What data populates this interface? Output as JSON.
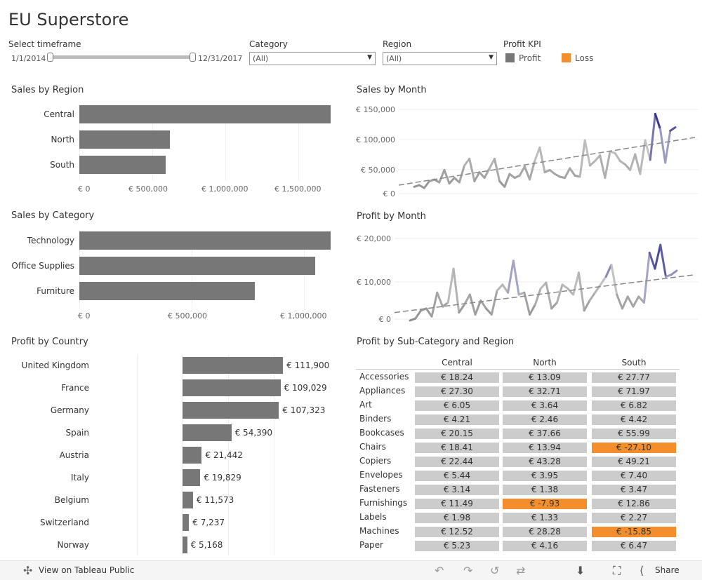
{
  "title": "EU Superstore",
  "filters": {
    "timeframe_label": "Select timeframe",
    "start_date": "1/1/2014",
    "end_date": "12/31/2017",
    "category_label": "Category",
    "category_value": "(All)",
    "region_label": "Region",
    "region_value": "(All)",
    "kpi_label": "Profit KPI",
    "legend": [
      {
        "label": "Profit",
        "color": "#777777"
      },
      {
        "label": "Loss",
        "color": "#f28e2b"
      }
    ]
  },
  "sales_by_region": {
    "title": "Sales by Region",
    "type": "bar",
    "categories": [
      "Central",
      "North",
      "South"
    ],
    "values": [
      1720000,
      620000,
      590000
    ],
    "ticks": [
      "€ 0",
      "€ 500,000",
      "€ 1,000,000",
      "€ 1,500,000"
    ]
  },
  "sales_by_category": {
    "title": "Sales by Category",
    "type": "bar",
    "categories": [
      "Technology",
      "Office Supplies",
      "Furniture"
    ],
    "values": [
      1120000,
      1050000,
      780000
    ],
    "ticks": [
      "€ 0",
      "€ 500,000",
      "€ 1,000,000"
    ]
  },
  "profit_by_country": {
    "title": "Profit by Country",
    "categories": [
      "United Kingdom",
      "France",
      "Germany",
      "Spain",
      "Austria",
      "Italy",
      "Belgium",
      "Switzerland",
      "Norway"
    ],
    "values": [
      111900,
      109029,
      107323,
      54390,
      21442,
      19829,
      11573,
      7237,
      5168
    ],
    "labels": [
      "€ 111,900",
      "€ 109,029",
      "€ 107,323",
      "€ 54,390",
      "€ 21,442",
      "€ 19,829",
      "€ 11,573",
      "€ 7,237",
      "€ 5,168"
    ]
  },
  "sales_by_month": {
    "title": "Sales by Month",
    "type": "line",
    "ticks": [
      "€ 150,000",
      "€ 100,000",
      "€ 50,000",
      "€ 0"
    ],
    "ylim": [
      0,
      160000
    ],
    "values": [
      12000,
      15000,
      10000,
      22000,
      25000,
      20000,
      42000,
      18000,
      28000,
      20000,
      50000,
      62000,
      22000,
      38000,
      28000,
      45000,
      62000,
      22000,
      12000,
      35000,
      28000,
      32000,
      48000,
      25000,
      58000,
      82000,
      38000,
      42000,
      35000,
      30000,
      28000,
      45000,
      32000,
      30000,
      95000,
      50000,
      58000,
      68000,
      28000,
      75000,
      72000,
      58000,
      52000,
      42000,
      70000,
      35000,
      95000,
      60000,
      142000,
      115000,
      55000,
      112000,
      118000
    ],
    "trend": [
      15000,
      100000
    ]
  },
  "profit_by_month": {
    "title": "Profit by Month",
    "type": "line",
    "ticks": [
      "€ 20,000",
      "€ 10,000",
      "€ 0"
    ],
    "ylim": [
      0,
      22000
    ],
    "values": [
      0,
      500,
      2500,
      3000,
      1000,
      7000,
      3500,
      4500,
      13000,
      2000,
      4000,
      6500,
      1500,
      5000,
      3000,
      1500,
      7500,
      9000,
      7000,
      15000,
      6500,
      7000,
      1500,
      4000,
      8000,
      9500,
      3000,
      4500,
      9000,
      8000,
      6500,
      12000,
      2500,
      5000,
      7000,
      9000,
      11000,
      14000,
      6500,
      3000,
      6000,
      3500,
      6000,
      4500,
      17000,
      13000,
      19000,
      11000,
      11500,
      12500
    ],
    "trend": [
      2000,
      11500
    ]
  },
  "profit_table": {
    "title": "Profit by Sub-Category and Region",
    "columns": [
      "Central",
      "North",
      "South"
    ],
    "rows": [
      {
        "label": "Accessories",
        "cells": [
          "€ 18.24",
          "€ 13.09",
          "€ 27.77"
        ],
        "loss": [
          false,
          false,
          false
        ]
      },
      {
        "label": "Appliances",
        "cells": [
          "€ 27.30",
          "€ 32.71",
          "€ 71.97"
        ],
        "loss": [
          false,
          false,
          false
        ]
      },
      {
        "label": "Art",
        "cells": [
          "€ 6.05",
          "€ 3.64",
          "€ 6.82"
        ],
        "loss": [
          false,
          false,
          false
        ]
      },
      {
        "label": "Binders",
        "cells": [
          "€ 4.21",
          "€ 2.46",
          "€ 4.42"
        ],
        "loss": [
          false,
          false,
          false
        ]
      },
      {
        "label": "Bookcases",
        "cells": [
          "€ 20.15",
          "€ 37.66",
          "€ 55.99"
        ],
        "loss": [
          false,
          false,
          false
        ]
      },
      {
        "label": "Chairs",
        "cells": [
          "€ 18.41",
          "€ 13.94",
          "€ -27.10"
        ],
        "loss": [
          false,
          false,
          true
        ]
      },
      {
        "label": "Copiers",
        "cells": [
          "€ 22.44",
          "€ 43.28",
          "€ 49.21"
        ],
        "loss": [
          false,
          false,
          false
        ]
      },
      {
        "label": "Envelopes",
        "cells": [
          "€ 5.44",
          "€ 3.95",
          "€ 7.40"
        ],
        "loss": [
          false,
          false,
          false
        ]
      },
      {
        "label": "Fasteners",
        "cells": [
          "€ 3.14",
          "€ 1.38",
          "€ 3.47"
        ],
        "loss": [
          false,
          false,
          false
        ]
      },
      {
        "label": "Furnishings",
        "cells": [
          "€ 11.49",
          "€ -7.93",
          "€ 12.86"
        ],
        "loss": [
          false,
          true,
          false
        ]
      },
      {
        "label": "Labels",
        "cells": [
          "€ 1.98",
          "€ 1.33",
          "€ 2.27"
        ],
        "loss": [
          false,
          false,
          false
        ]
      },
      {
        "label": "Machines",
        "cells": [
          "€ 12.52",
          "€ 28.28",
          "€ -15.85"
        ],
        "loss": [
          false,
          false,
          true
        ]
      },
      {
        "label": "Paper",
        "cells": [
          "€ 5.23",
          "€ 4.16",
          "€ 6.47"
        ],
        "loss": [
          false,
          false,
          false
        ]
      }
    ],
    "profit_color": "#cccccc",
    "loss_color": "#f28e2b"
  },
  "footer": {
    "view_label": "View on Tableau Public",
    "share_label": "Share",
    "icons": [
      "tableau-icon",
      "undo-icon",
      "redo-icon",
      "revert-icon",
      "refresh-icon",
      "download-icon",
      "fullscreen-icon",
      "share-icon"
    ]
  }
}
